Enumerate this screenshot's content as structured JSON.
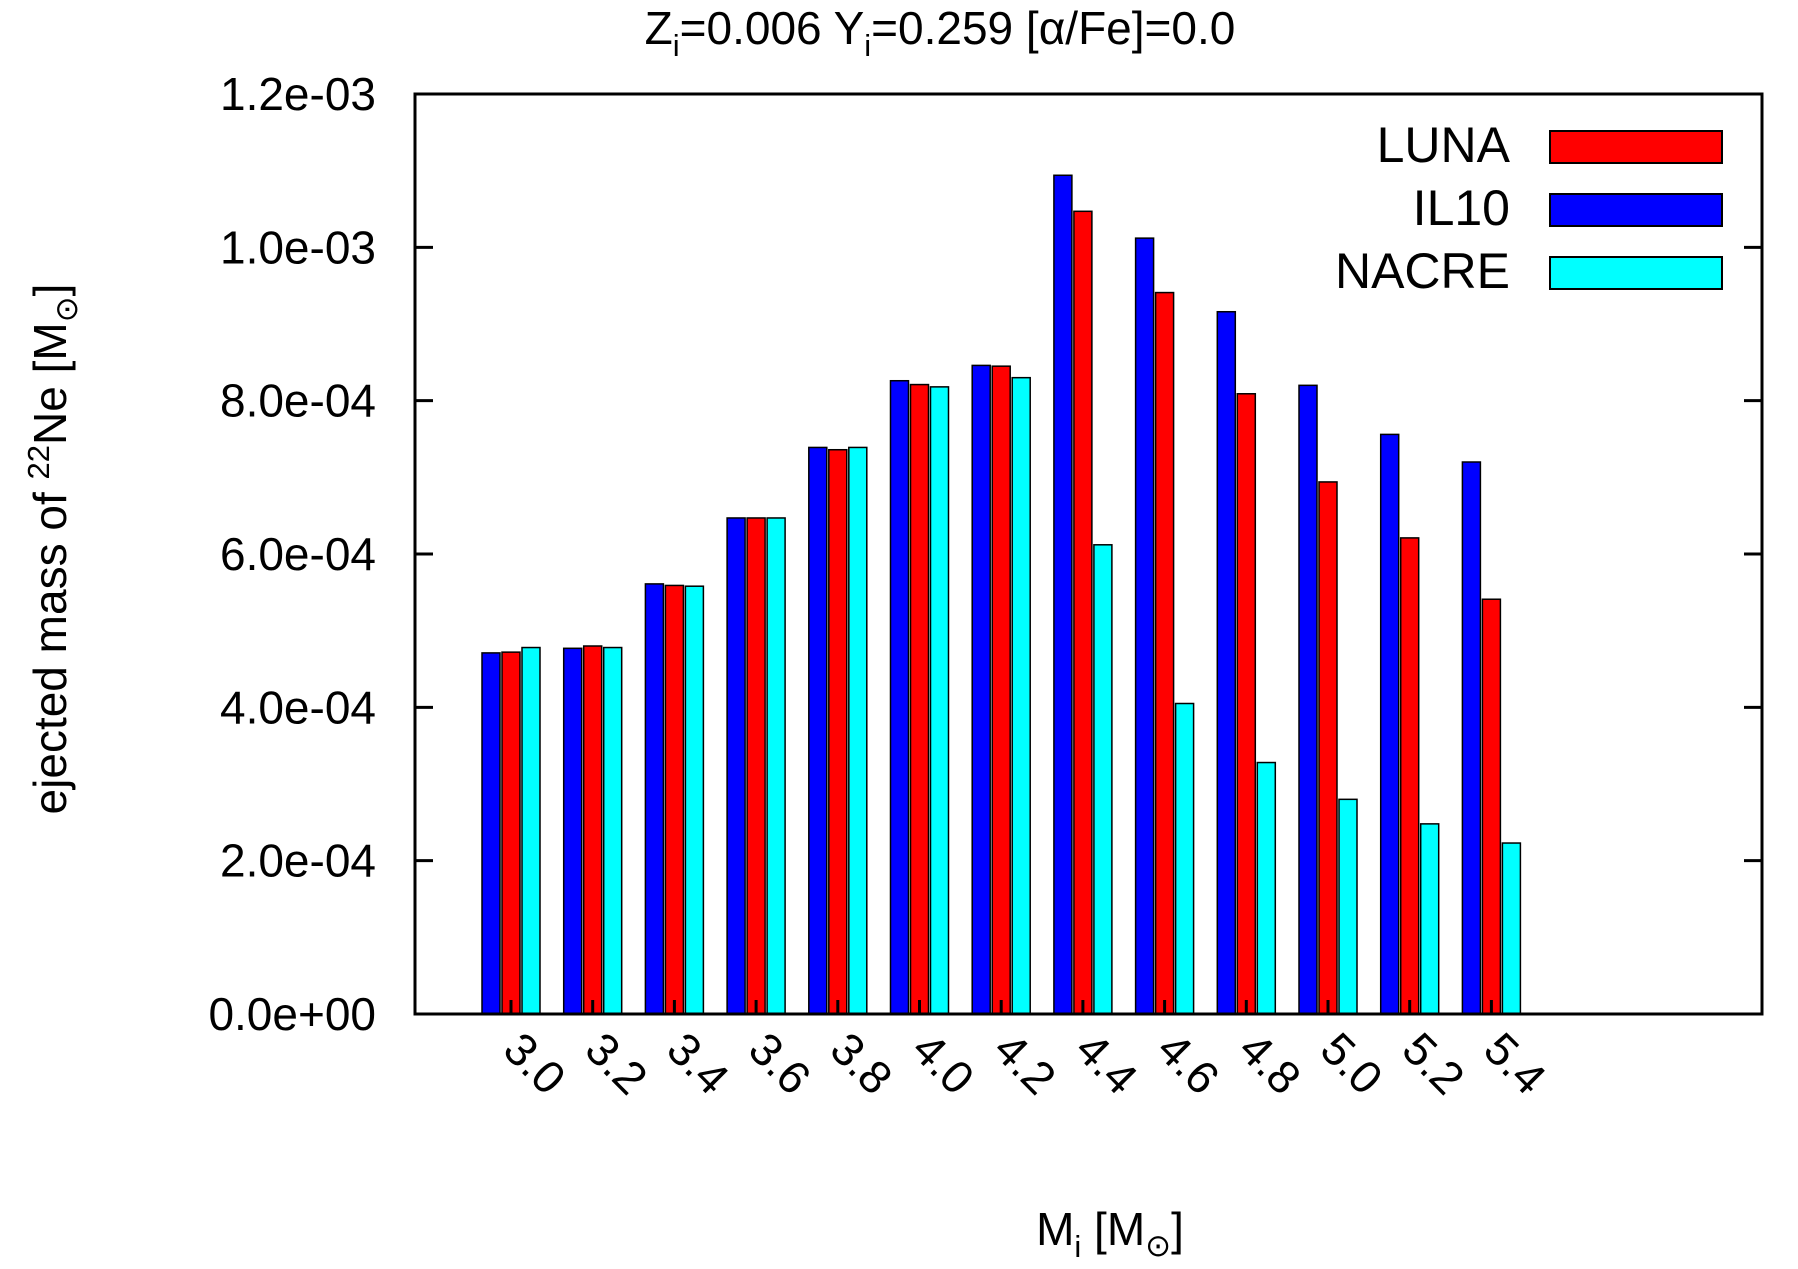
{
  "chart_data": {
    "type": "bar",
    "title": {
      "z_sym": "Z",
      "z_sub": "i",
      "z_val": "=0.006 ",
      "y_sym": "Y",
      "y_sub": "i",
      "y_val": "=0.259  [",
      "alpha": "α",
      "rest": "/Fe]=0.0"
    },
    "xlabel": {
      "sym": "M",
      "sub": "i",
      "unit_open": " [M",
      "sun": "⊙",
      "close": "]"
    },
    "ylabel": {
      "pre": "ejected mass  of ",
      "iso": "22",
      "el": "Ne  [M",
      "sun": "⊙",
      "close": "]"
    },
    "ylim": [
      0,
      0.0012
    ],
    "y_ticks": [
      0,
      0.0002,
      0.0004,
      0.0006,
      0.0008,
      0.001,
      0.0012
    ],
    "y_tick_labels": [
      "0.0e+00",
      "2.0e-04",
      "4.0e-04",
      "6.0e-04",
      "8.0e-04",
      "1.0e-03",
      "1.2e-03"
    ],
    "categories": [
      "3.0",
      "3.2",
      "3.4",
      "3.6",
      "3.8",
      "4.0",
      "4.2",
      "4.4",
      "4.6",
      "4.8",
      "5.0",
      "5.2",
      "5.4"
    ],
    "series": [
      {
        "name": "IL10",
        "color": "#0000ff",
        "values": [
          0.000471,
          0.000477,
          0.000561,
          0.000647,
          0.000739,
          0.000826,
          0.000846,
          0.001094,
          0.001012,
          0.000916,
          0.00082,
          0.000756,
          0.00072
        ]
      },
      {
        "name": "LUNA",
        "color": "#ff0000",
        "values": [
          0.000472,
          0.00048,
          0.000559,
          0.000647,
          0.000736,
          0.000821,
          0.000845,
          0.001047,
          0.000941,
          0.000809,
          0.000694,
          0.000621,
          0.000541
        ]
      },
      {
        "name": "NACRE",
        "color": "#00ffff",
        "values": [
          0.000478,
          0.000478,
          0.000558,
          0.000647,
          0.000739,
          0.000818,
          0.00083,
          0.000612,
          0.000405,
          0.000328,
          0.00028,
          0.000248,
          0.000223
        ]
      }
    ],
    "legend": {
      "placement": "top-right",
      "order": [
        "LUNA",
        "IL10",
        "NACRE"
      ]
    }
  }
}
